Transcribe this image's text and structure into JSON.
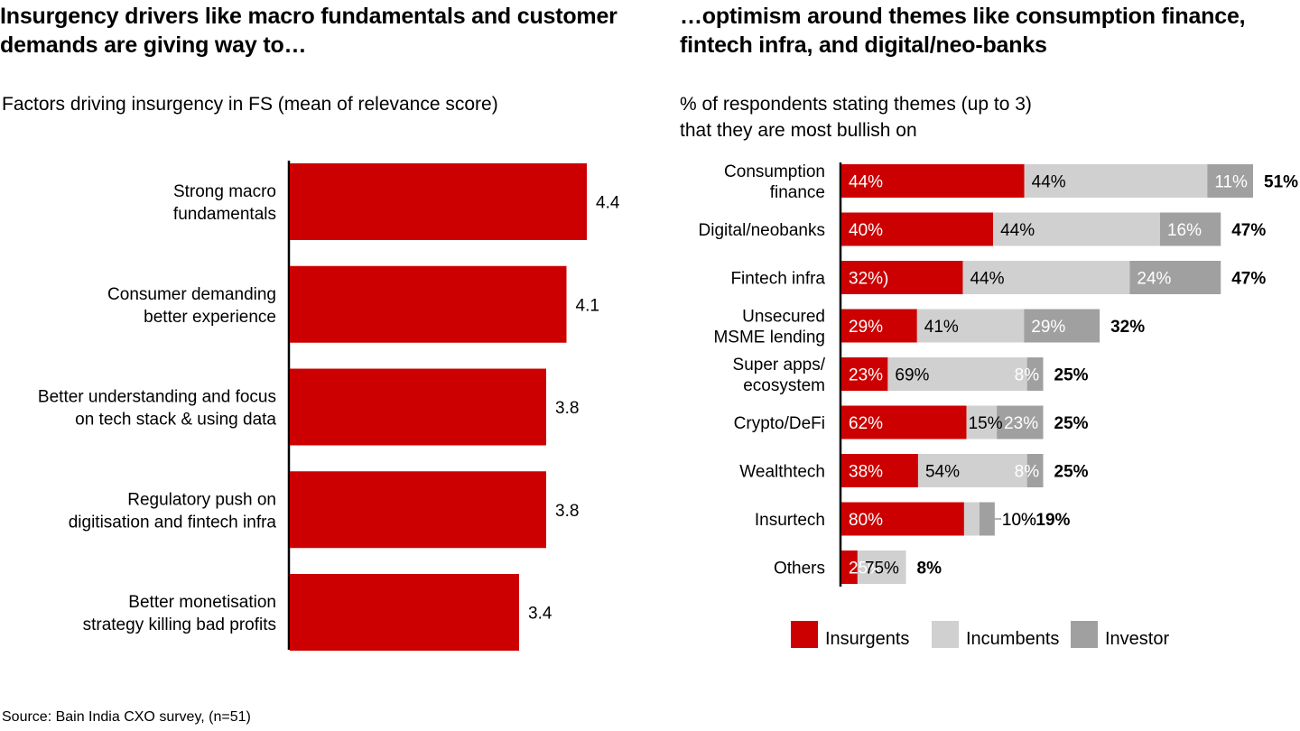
{
  "source": "Source: Bain India CXO survey, (n=51)",
  "chart_data": [
    {
      "type": "bar",
      "orientation": "horizontal",
      "title": "Insurgency drivers like macro fundamentals and customer demands are giving way to…",
      "subtitle": "Factors driving insurgency in FS (mean of relevance score)",
      "categories": [
        [
          "Strong macro",
          "fundamentals"
        ],
        [
          "Consumer demanding",
          "better experience"
        ],
        [
          "Better understanding and focus",
          "on tech stack & using data"
        ],
        [
          "Regulatory push on",
          "digitisation and fintech infra"
        ],
        [
          "Better monetisation",
          "strategy killing bad profits"
        ]
      ],
      "values": [
        4.4,
        4.1,
        3.8,
        3.8,
        3.4
      ],
      "value_labels": [
        "4.4",
        "4.1",
        "3.8",
        "3.8",
        "3.4"
      ],
      "xlim": [
        0,
        5
      ],
      "grid": false,
      "color": "#cc0000"
    },
    {
      "type": "bar",
      "orientation": "horizontal",
      "stacked": true,
      "title": "…optimism around themes like consumption finance, fintech infra, and digital/neo-banks",
      "subtitle": [
        "% of respondents stating themes (up to 3)",
        "that they are most bullish on"
      ],
      "categories": [
        [
          "Consumption",
          "finance"
        ],
        [
          "Digital/neobanks"
        ],
        [
          "Fintech infra"
        ],
        [
          "Unsecured",
          "MSME lending"
        ],
        [
          "Super apps/",
          "ecosystem"
        ],
        [
          "Crypto/DeFi"
        ],
        [
          "Wealthtech"
        ],
        [
          "Insurtech"
        ],
        [
          "Others"
        ]
      ],
      "totals": [
        51,
        47,
        47,
        32,
        25,
        25,
        25,
        19,
        8
      ],
      "total_labels": [
        "51%",
        "47%",
        "47%",
        "32%",
        "25%",
        "25%",
        "25%",
        "19%",
        "8%"
      ],
      "series": [
        {
          "name": "Insurgents",
          "color": "#cc0000",
          "values": [
            44,
            40,
            32,
            29,
            23,
            62,
            38,
            80,
            25
          ],
          "labels": [
            "44%",
            "40%",
            "32%)",
            "29%",
            "23%",
            "62%",
            "38%",
            "80%",
            "25%"
          ]
        },
        {
          "name": "Incumbents",
          "color": "#d0d0d0",
          "values": [
            44,
            44,
            44,
            41,
            69,
            15,
            54,
            10,
            75
          ],
          "labels": [
            "44%",
            "44%",
            "44%",
            "41%",
            "69%",
            "15%",
            "54%",
            "10%",
            "75%"
          ]
        },
        {
          "name": "Investor",
          "color": "#a0a0a0",
          "values": [
            11,
            16,
            24,
            29,
            8,
            23,
            8,
            10,
            0
          ],
          "labels": [
            "11%",
            "16%",
            "24%",
            "29%",
            "8%",
            "23%",
            "8%",
            "10%",
            ""
          ]
        }
      ],
      "legend": {
        "placement": "bottom",
        "entries": [
          "Insurgents",
          "Incumbents",
          "Investor"
        ]
      },
      "xlim": [
        0,
        51
      ],
      "grid": false
    }
  ]
}
